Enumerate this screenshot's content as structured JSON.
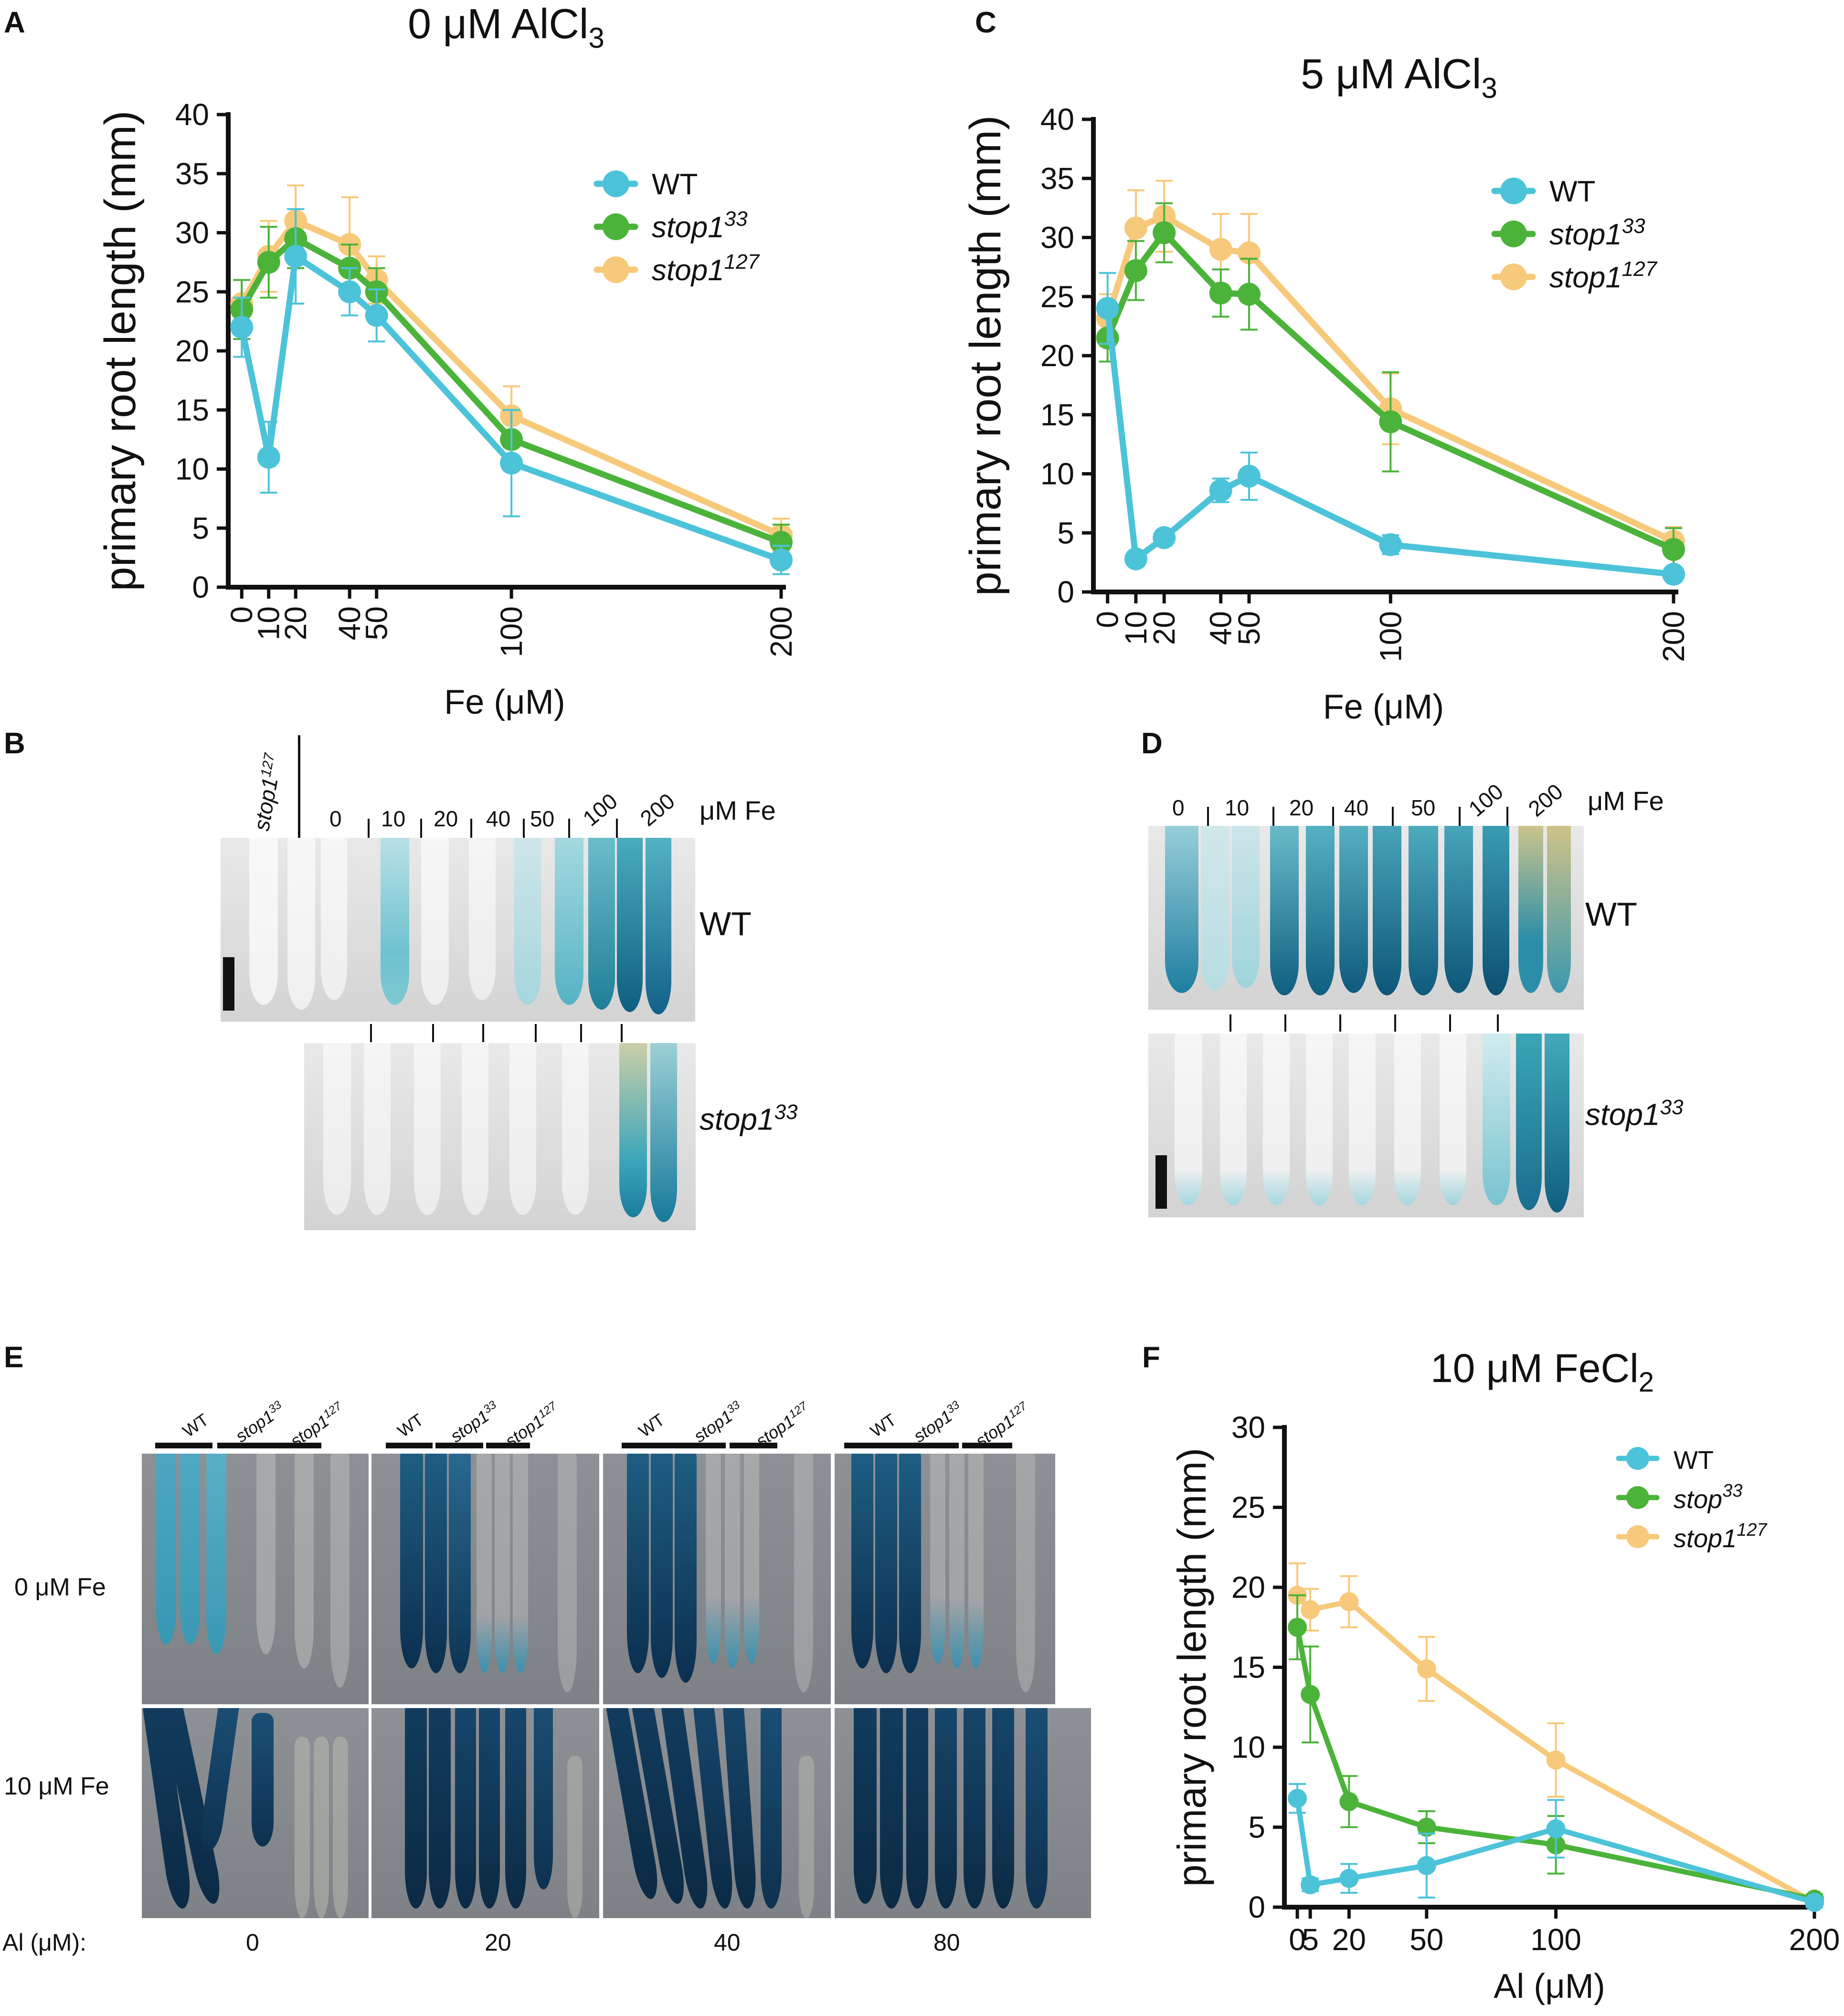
{
  "panels": {
    "A": "A",
    "B": "B",
    "C": "C",
    "D": "D",
    "E": "E",
    "F": "F"
  },
  "colors": {
    "wt": "#4cc3d9",
    "stop1_33": "#4bb33a",
    "stop1_127": "#f7c97a",
    "axis": "#111111",
    "gus_dark": "#0f3d5c",
    "gus_mid": "#2a8fae",
    "gus_light": "#8fcfd9"
  },
  "chart_data": [
    {
      "id": "A",
      "type": "line",
      "title": "0 μM AlCl",
      "title_sub": "3",
      "xlabel": "Fe (μM)",
      "ylabel": "primary root length (mm)",
      "x": [
        0,
        10,
        20,
        40,
        50,
        100,
        200
      ],
      "xticks": [
        "0",
        "10",
        "20",
        "40",
        "50",
        "100",
        "200"
      ],
      "xlim": [
        -5,
        200
      ],
      "ylim": [
        0,
        40
      ],
      "yticks": [
        "0",
        "5",
        "10",
        "15",
        "20",
        "25",
        "30",
        "35",
        "40"
      ],
      "legend": {
        "position": "top-right"
      },
      "series": [
        {
          "name": "WT",
          "sup": "",
          "color_key": "wt",
          "values": [
            22,
            11,
            28,
            25,
            23,
            10.5,
            2.3
          ],
          "err": [
            2.5,
            3,
            4,
            2,
            2.2,
            4.5,
            1.2
          ]
        },
        {
          "name": "stop1",
          "sup": "33",
          "color_key": "stop1_33",
          "values": [
            23.5,
            27.5,
            29.5,
            27,
            25,
            12.5,
            3.8
          ],
          "err": [
            2.5,
            3,
            2.5,
            2,
            2,
            2.5,
            1.5
          ]
        },
        {
          "name": "stop1",
          "sup": "127",
          "color_key": "stop1_127",
          "values": [
            24,
            28,
            31,
            29,
            26,
            14.5,
            4.4
          ],
          "err": [
            2,
            3,
            3,
            4,
            2,
            2.5,
            1.4
          ]
        }
      ]
    },
    {
      "id": "C",
      "type": "line",
      "title": "5 μM AlCl",
      "title_sub": "3",
      "xlabel": "Fe (μM)",
      "ylabel": "primary root length (mm)",
      "x": [
        0,
        10,
        20,
        40,
        50,
        100,
        200
      ],
      "xticks": [
        "0",
        "10",
        "20",
        "40",
        "50",
        "100",
        "200"
      ],
      "xlim": [
        -5,
        200
      ],
      "ylim": [
        0,
        40
      ],
      "yticks": [
        "0",
        "5",
        "10",
        "15",
        "20",
        "25",
        "30",
        "35",
        "40"
      ],
      "legend": {
        "position": "top-right"
      },
      "series": [
        {
          "name": "WT",
          "sup": "",
          "color_key": "wt",
          "values": [
            24,
            2.8,
            4.6,
            8.6,
            9.8,
            4,
            1.5
          ],
          "err": [
            3,
            0.5,
            0.6,
            1,
            2,
            0.8,
            0.5
          ]
        },
        {
          "name": "stop1",
          "sup": "33",
          "color_key": "stop1_33",
          "values": [
            21.5,
            27.2,
            30.4,
            25.3,
            25.2,
            14.4,
            3.6
          ],
          "err": [
            2,
            2.5,
            2.5,
            2,
            3,
            4.2,
            1.8
          ]
        },
        {
          "name": "stop1",
          "sup": "127",
          "color_key": "stop1_127",
          "values": [
            23.2,
            30.8,
            31.8,
            29,
            28.7,
            15.5,
            4.3
          ],
          "err": [
            2,
            3.2,
            3,
            3,
            3.3,
            3,
            1.2
          ]
        }
      ]
    },
    {
      "id": "F",
      "type": "line",
      "title": "10 μM FeCl",
      "title_sub": "2",
      "xlabel": "Al (μM)",
      "ylabel": "primary root length (mm)",
      "x": [
        0,
        5,
        20,
        50,
        100,
        200
      ],
      "xticks": [
        "0",
        "5",
        "20",
        "50",
        "100",
        "200"
      ],
      "xlim": [
        -5,
        200
      ],
      "ylim": [
        0,
        30
      ],
      "yticks": [
        "0",
        "5",
        "10",
        "15",
        "20",
        "25",
        "30"
      ],
      "legend": {
        "position": "top-right"
      },
      "series": [
        {
          "name": "WT",
          "sup": "",
          "color_key": "wt",
          "values": [
            6.8,
            1.4,
            1.8,
            2.6,
            4.9,
            0.3
          ],
          "err": [
            0.9,
            0.4,
            0.9,
            2,
            1.8,
            0.3
          ]
        },
        {
          "name": "stop",
          "sup": "33",
          "color_key": "stop1_33",
          "values": [
            17.5,
            13.3,
            6.6,
            5,
            3.9,
            0.5
          ],
          "err": [
            2,
            3,
            1.6,
            1,
            1.8,
            0.3
          ]
        },
        {
          "name": "stop1",
          "sup": "127",
          "color_key": "stop1_127",
          "values": [
            19.5,
            18.6,
            19.1,
            14.9,
            9.2,
            0.3
          ],
          "err": [
            2,
            1.3,
            1.6,
            2,
            2.3,
            0.3
          ]
        }
      ]
    }
  ],
  "panel_B": {
    "header_genotype": "stop1",
    "header_genotype_sup": "127",
    "fe_labels": [
      "0",
      "10",
      "20",
      "40",
      "50",
      "100",
      "200"
    ],
    "unit": "μM Fe",
    "row1_label": "WT",
    "row2_label": "stop1",
    "row2_label_sup": "33"
  },
  "panel_D": {
    "fe_labels": [
      "0",
      "10",
      "20",
      "40",
      "50",
      "100",
      "200"
    ],
    "unit": "μM Fe",
    "row1_label": "WT",
    "row2_label": "stop1",
    "row2_label_sup": "33"
  },
  "panel_E": {
    "group_labels": [
      {
        "wt": "WT",
        "s33": "stop1",
        "s33_sup": "33",
        "s127": "stop1",
        "s127_sup": "127"
      },
      {
        "wt": "WT",
        "s33": "stop1",
        "s33_sup": "33",
        "s127": "stop1",
        "s127_sup": "127"
      },
      {
        "wt": "WT",
        "s33": "stop1",
        "s33_sup": "33",
        "s127": "stop1",
        "s127_sup": "127"
      },
      {
        "wt": "WT",
        "s33": "stop1",
        "s33_sup": "33",
        "s127": "stop1",
        "s127_sup": "127"
      }
    ],
    "row1_label": "0 μM Fe",
    "row2_label": "10 μM Fe",
    "al_axis_label": "Al (μM):",
    "al_values": [
      "0",
      "20",
      "40",
      "80"
    ]
  }
}
